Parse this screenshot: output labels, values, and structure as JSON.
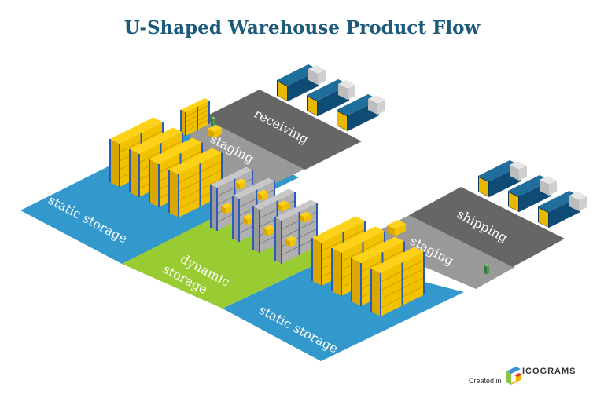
{
  "title": "U-Shaped Warehouse Product Flow",
  "zones": {
    "receiving": "receiving",
    "staging_top": "staging",
    "static_left": "static storage",
    "dynamic_line1": "dynamic",
    "dynamic_line2": "storage",
    "static_right": "static storage",
    "staging_right": "staging",
    "shipping": "shipping"
  },
  "colors": {
    "title": "#1b5a7a",
    "static_storage": "#3399cc",
    "dynamic_storage": "#99cc33",
    "receiving_shipping": "#666666",
    "staging": "#999999",
    "rack_boxes": "#f2c200",
    "rack_frame": "#2a5bb8",
    "truck": "#0f4c75"
  },
  "footer": {
    "created_in": "Created in",
    "brand": "ICOGRAMS"
  }
}
